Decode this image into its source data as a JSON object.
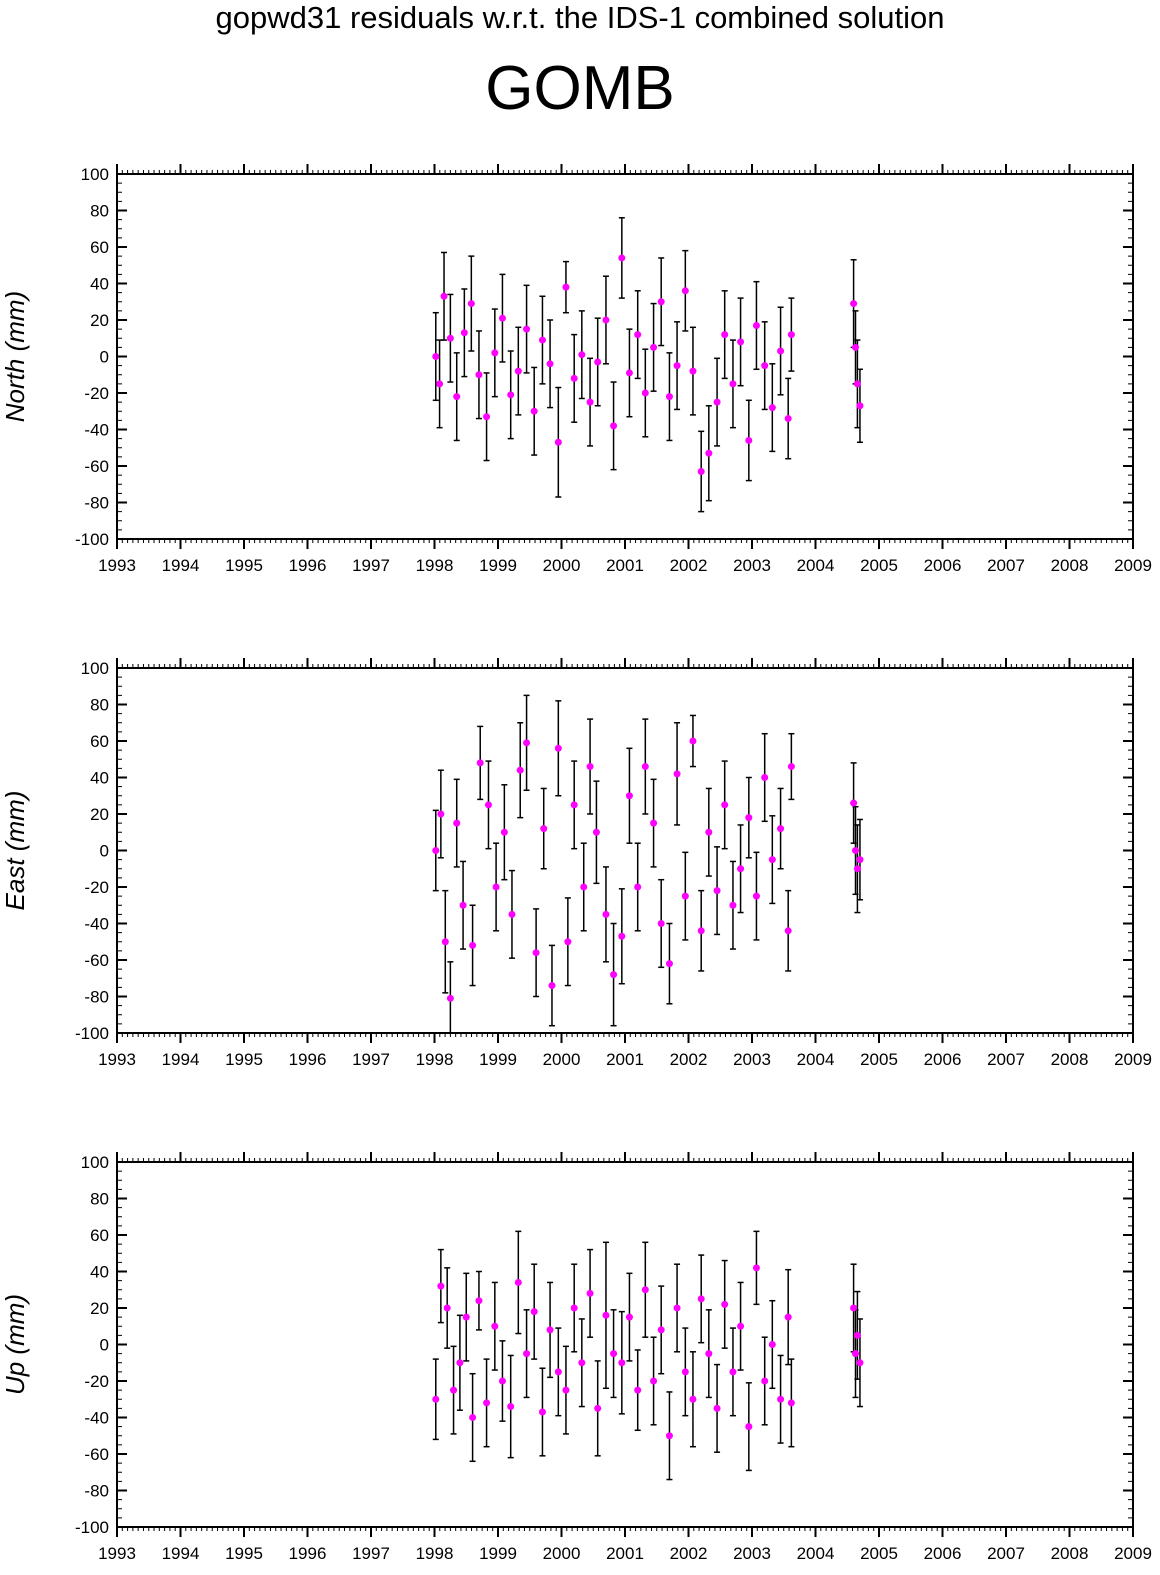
{
  "title": "gopwd31 residuals w.r.t. the IDS-1 combined solution",
  "station": "GOMB",
  "colors": {
    "marker": "#ff00ff",
    "errorbar": "#000000",
    "axis": "#000000"
  },
  "chart_data": [
    {
      "type": "scatter",
      "ylabel": "North (mm)",
      "xlim": [
        1993,
        2009
      ],
      "ylim": [
        -100,
        100
      ],
      "x_ticks": [
        "1993",
        "1994",
        "1995",
        "1996",
        "1997",
        "1998",
        "1999",
        "2000",
        "2001",
        "2002",
        "2003",
        "2004",
        "2005",
        "2006",
        "2007",
        "2008",
        "2009"
      ],
      "y_ticks": [
        "100",
        "80",
        "60",
        "40",
        "20",
        "0",
        "-20",
        "-40",
        "-60",
        "-80",
        "-100"
      ],
      "grid": false,
      "series": [
        {
          "x": [
            1998.02,
            1998.08,
            1998.15,
            1998.25,
            1998.35,
            1998.47,
            1998.58,
            1998.7,
            1998.82,
            1998.95,
            1999.07,
            1999.2,
            1999.32,
            1999.45,
            1999.57,
            1999.7,
            1999.82,
            1999.95,
            2000.07,
            2000.2,
            2000.32,
            2000.45,
            2000.57,
            2000.7,
            2000.82,
            2000.95,
            2001.07,
            2001.2,
            2001.32,
            2001.45,
            2001.57,
            2001.7,
            2001.82,
            2001.95,
            2002.07,
            2002.2,
            2002.32,
            2002.45,
            2002.57,
            2002.7,
            2002.82,
            2002.95,
            2003.07,
            2003.2,
            2003.32,
            2003.45,
            2003.57,
            2003.62,
            2004.6,
            2004.63,
            2004.66,
            2004.7
          ],
          "y": [
            0,
            -15,
            33,
            10,
            -22,
            13,
            29,
            -10,
            -33,
            2,
            21,
            -21,
            -8,
            15,
            -30,
            9,
            -4,
            -47,
            38,
            -12,
            1,
            -25,
            -3,
            20,
            -38,
            54,
            -9,
            12,
            -20,
            5,
            30,
            -22,
            -5,
            36,
            -8,
            -63,
            -53,
            -25,
            12,
            -15,
            8,
            -46,
            17,
            -5,
            -28,
            3,
            -34,
            12,
            29,
            5,
            -15,
            -27
          ],
          "yerr": [
            24,
            24,
            24,
            24,
            24,
            24,
            26,
            24,
            24,
            24,
            24,
            24,
            24,
            24,
            24,
            24,
            24,
            30,
            14,
            24,
            24,
            24,
            24,
            24,
            24,
            22,
            24,
            24,
            24,
            24,
            24,
            24,
            24,
            22,
            24,
            22,
            26,
            24,
            24,
            24,
            24,
            22,
            24,
            24,
            24,
            24,
            22,
            20,
            24,
            20,
            24,
            20
          ]
        }
      ]
    },
    {
      "type": "scatter",
      "ylabel": "East (mm)",
      "xlim": [
        1993,
        2009
      ],
      "ylim": [
        -100,
        100
      ],
      "x_ticks": [
        "1993",
        "1994",
        "1995",
        "1996",
        "1997",
        "1998",
        "1999",
        "2000",
        "2001",
        "2002",
        "2003",
        "2004",
        "2005",
        "2006",
        "2007",
        "2008",
        "2009"
      ],
      "y_ticks": [
        "100",
        "80",
        "60",
        "40",
        "20",
        "0",
        "-20",
        "-40",
        "-60",
        "-80",
        "-100"
      ],
      "grid": false,
      "series": [
        {
          "x": [
            1998.02,
            1998.1,
            1998.17,
            1998.25,
            1998.35,
            1998.45,
            1998.6,
            1998.72,
            1998.85,
            1998.97,
            1999.1,
            1999.22,
            1999.35,
            1999.45,
            1999.6,
            1999.72,
            1999.85,
            1999.95,
            2000.1,
            2000.2,
            2000.35,
            2000.45,
            2000.55,
            2000.7,
            2000.82,
            2000.95,
            2001.07,
            2001.2,
            2001.32,
            2001.45,
            2001.57,
            2001.7,
            2001.82,
            2001.95,
            2002.07,
            2002.2,
            2002.32,
            2002.45,
            2002.57,
            2002.7,
            2002.82,
            2002.95,
            2003.07,
            2003.2,
            2003.32,
            2003.45,
            2003.57,
            2003.62,
            2004.6,
            2004.63,
            2004.66,
            2004.7
          ],
          "y": [
            0,
            20,
            -50,
            -81,
            15,
            -30,
            -52,
            48,
            25,
            -20,
            10,
            -35,
            44,
            59,
            -56,
            12,
            -74,
            56,
            -50,
            25,
            -20,
            46,
            10,
            -35,
            -68,
            -47,
            30,
            -20,
            46,
            15,
            -40,
            -62,
            42,
            -25,
            60,
            -44,
            10,
            -22,
            25,
            -30,
            -10,
            18,
            -25,
            40,
            -5,
            12,
            -44,
            46,
            26,
            0,
            -10,
            -5
          ],
          "yerr": [
            22,
            24,
            28,
            20,
            24,
            24,
            22,
            20,
            24,
            24,
            26,
            24,
            26,
            26,
            24,
            22,
            22,
            26,
            24,
            24,
            24,
            26,
            28,
            26,
            28,
            26,
            26,
            24,
            26,
            24,
            24,
            22,
            28,
            24,
            14,
            22,
            24,
            24,
            24,
            24,
            24,
            22,
            24,
            24,
            24,
            22,
            22,
            18,
            22,
            24,
            24,
            22
          ]
        }
      ]
    },
    {
      "type": "scatter",
      "ylabel": "Up (mm)",
      "xlim": [
        1993,
        2009
      ],
      "ylim": [
        -100,
        100
      ],
      "x_ticks": [
        "1993",
        "1994",
        "1995",
        "1996",
        "1997",
        "1998",
        "1999",
        "2000",
        "2001",
        "2002",
        "2003",
        "2004",
        "2005",
        "2006",
        "2007",
        "2008",
        "2009"
      ],
      "y_ticks": [
        "100",
        "80",
        "60",
        "40",
        "20",
        "0",
        "-20",
        "-40",
        "-60",
        "-80",
        "-100"
      ],
      "grid": false,
      "series": [
        {
          "x": [
            1998.02,
            1998.1,
            1998.2,
            1998.3,
            1998.4,
            1998.5,
            1998.6,
            1998.7,
            1998.82,
            1998.95,
            1999.07,
            1999.2,
            1999.32,
            1999.45,
            1999.57,
            1999.7,
            1999.82,
            1999.95,
            2000.07,
            2000.2,
            2000.32,
            2000.45,
            2000.57,
            2000.7,
            2000.82,
            2000.95,
            2001.07,
            2001.2,
            2001.32,
            2001.45,
            2001.57,
            2001.7,
            2001.82,
            2001.95,
            2002.07,
            2002.2,
            2002.32,
            2002.45,
            2002.57,
            2002.7,
            2002.82,
            2002.95,
            2003.07,
            2003.2,
            2003.32,
            2003.45,
            2003.57,
            2003.62,
            2004.6,
            2004.63,
            2004.66,
            2004.7
          ],
          "y": [
            -30,
            32,
            20,
            -25,
            -10,
            15,
            -40,
            24,
            -32,
            10,
            -20,
            -34,
            34,
            -5,
            18,
            -37,
            8,
            -15,
            -25,
            20,
            -10,
            28,
            -35,
            16,
            -5,
            -10,
            15,
            -25,
            30,
            -20,
            8,
            -50,
            20,
            -15,
            -30,
            25,
            -5,
            -35,
            22,
            -15,
            10,
            -45,
            42,
            -20,
            0,
            -30,
            15,
            -32,
            20,
            -5,
            5,
            -10
          ],
          "yerr": [
            22,
            20,
            22,
            24,
            26,
            24,
            24,
            16,
            24,
            24,
            22,
            28,
            28,
            24,
            26,
            24,
            26,
            24,
            24,
            24,
            24,
            24,
            26,
            40,
            24,
            28,
            24,
            22,
            26,
            24,
            24,
            24,
            24,
            24,
            26,
            24,
            24,
            24,
            24,
            24,
            24,
            24,
            20,
            24,
            24,
            24,
            26,
            24,
            24,
            24,
            24,
            24
          ]
        }
      ]
    }
  ]
}
